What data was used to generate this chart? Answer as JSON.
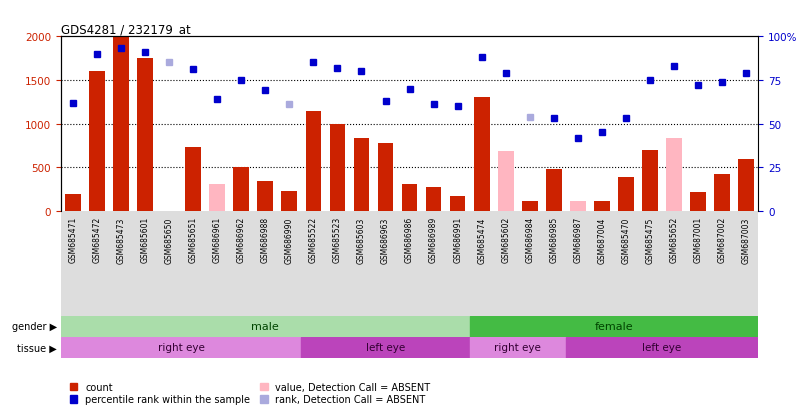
{
  "title": "GDS4281 / 232179_at",
  "samples": [
    "GSM685471",
    "GSM685472",
    "GSM685473",
    "GSM685601",
    "GSM685650",
    "GSM685651",
    "GSM686961",
    "GSM686962",
    "GSM686988",
    "GSM686990",
    "GSM685522",
    "GSM685523",
    "GSM685603",
    "GSM686963",
    "GSM686986",
    "GSM686989",
    "GSM686991",
    "GSM685474",
    "GSM685602",
    "GSM686984",
    "GSM686985",
    "GSM686987",
    "GSM687004",
    "GSM685470",
    "GSM685475",
    "GSM685652",
    "GSM687001",
    "GSM687002",
    "GSM687003"
  ],
  "counts": [
    200,
    1600,
    2000,
    1750,
    0,
    730,
    310,
    500,
    340,
    230,
    1140,
    1000,
    830,
    780,
    310,
    280,
    170,
    1310,
    690,
    120,
    480,
    120,
    120,
    390,
    700,
    830,
    220,
    420,
    590
  ],
  "percentile_ranks": [
    62,
    90,
    93,
    91,
    85,
    81,
    64,
    75,
    69,
    61,
    85,
    82,
    80,
    63,
    70,
    61,
    60,
    88,
    79,
    54,
    53,
    42,
    45,
    53,
    75,
    83,
    72,
    74,
    79
  ],
  "absent_value_indices": [
    6,
    18,
    21,
    25
  ],
  "absent_rank_indices": [
    4,
    9,
    19
  ],
  "gender_groups": [
    {
      "label": "male",
      "start": 0,
      "end": 17,
      "color": "#aaddaa"
    },
    {
      "label": "female",
      "start": 17,
      "end": 29,
      "color": "#44bb44"
    }
  ],
  "tissue_groups": [
    {
      "label": "right eye",
      "start": 0,
      "end": 10,
      "color": "#dd88dd"
    },
    {
      "label": "left eye",
      "start": 10,
      "end": 17,
      "color": "#bb44bb"
    },
    {
      "label": "right eye",
      "start": 17,
      "end": 21,
      "color": "#dd88dd"
    },
    {
      "label": "left eye",
      "start": 21,
      "end": 29,
      "color": "#bb44bb"
    }
  ],
  "ylim_left": [
    0,
    2000
  ],
  "ylim_right": [
    0,
    100
  ],
  "yticks_left": [
    0,
    500,
    1000,
    1500,
    2000
  ],
  "yticks_right": [
    0,
    25,
    50,
    75,
    100
  ],
  "bar_color": "#CC2200",
  "absent_bar_color": "#FFB6C1",
  "dot_color": "#0000CC",
  "absent_dot_color": "#AAAADD",
  "legend_items": [
    {
      "label": "count",
      "color": "#CC2200"
    },
    {
      "label": "percentile rank within the sample",
      "color": "#0000CC"
    },
    {
      "label": "value, Detection Call = ABSENT",
      "color": "#FFB6C1"
    },
    {
      "label": "rank, Detection Call = ABSENT",
      "color": "#AAAADD"
    }
  ]
}
